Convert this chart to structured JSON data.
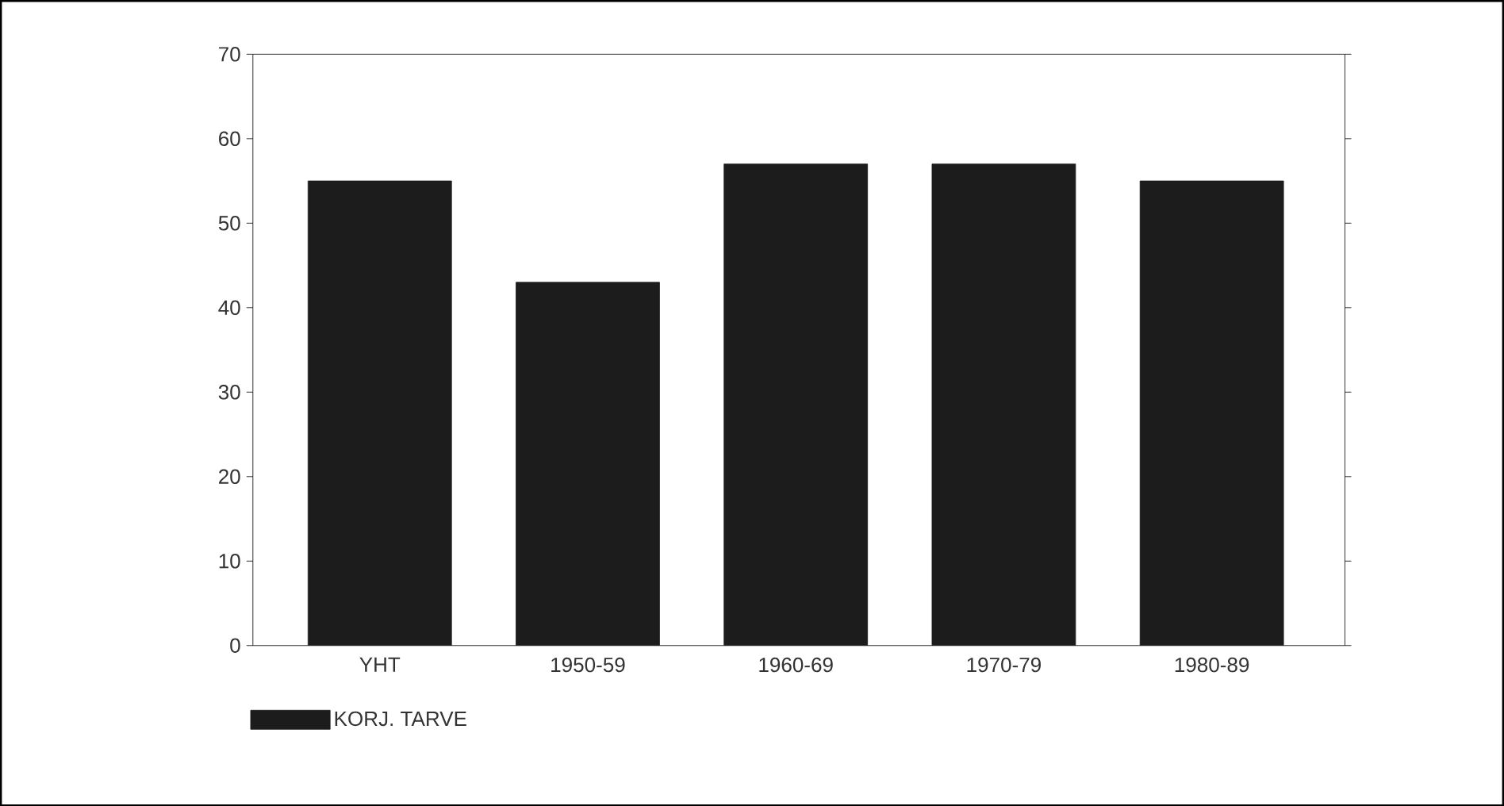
{
  "chart_data": {
    "type": "bar",
    "categories": [
      "YHT",
      "1950-59",
      "1960-69",
      "1970-79",
      "1980-89"
    ],
    "series": [
      {
        "name": "KORJ. TARVE",
        "color": "#1c1c1c",
        "values": [
          55,
          43,
          57,
          57,
          55
        ]
      }
    ],
    "ylim": [
      0,
      70
    ],
    "yticks": [
      0,
      10,
      20,
      30,
      40,
      50,
      60,
      70
    ],
    "legend": "bottom left",
    "grid": false
  }
}
